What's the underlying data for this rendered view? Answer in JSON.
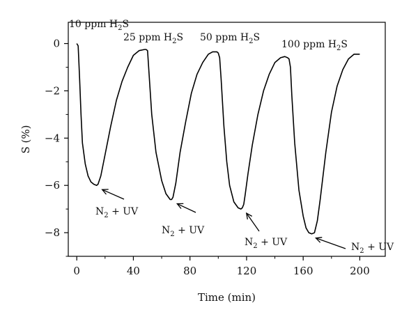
{
  "chart_data": {
    "type": "line",
    "title": "",
    "xlabel": "Time (min)",
    "ylabel": "S (%)",
    "xlim": [
      -6,
      218
    ],
    "ylim": [
      -9,
      0.9
    ],
    "x_ticks": [
      0,
      40,
      80,
      120,
      160,
      200
    ],
    "x_tick_labels": [
      "0",
      "40",
      "80",
      "120",
      "160",
      "200"
    ],
    "y_ticks": [
      0,
      -2,
      -4,
      -6,
      -8
    ],
    "y_tick_labels": [
      "0",
      "−2",
      "−4",
      "−6",
      "−8"
    ],
    "grid": false,
    "color": "#000000",
    "series": [
      {
        "x": [
          0,
          1,
          2,
          3,
          4,
          6,
          8,
          10,
          12,
          14,
          15,
          17,
          20,
          24,
          28,
          32,
          36,
          40,
          44,
          48,
          49,
          50,
          51,
          53,
          56,
          60,
          63,
          66,
          67,
          68,
          70,
          73,
          77,
          81,
          85,
          89,
          93,
          96,
          99,
          100,
          101,
          102,
          104,
          106,
          108,
          111,
          114,
          116,
          117,
          118,
          119,
          121,
          124,
          128,
          132,
          136,
          140,
          144,
          147,
          149,
          150,
          151,
          152,
          154,
          157,
          160,
          162,
          164,
          166,
          168,
          170,
          172,
          176,
          180,
          184,
          188,
          192,
          196,
          200
        ],
        "y": [
          0,
          -0.1,
          -1.5,
          -3.0,
          -4.2,
          -5.1,
          -5.6,
          -5.85,
          -5.95,
          -6.0,
          -5.95,
          -5.6,
          -4.7,
          -3.5,
          -2.4,
          -1.6,
          -1.0,
          -0.5,
          -0.3,
          -0.25,
          -0.25,
          -0.3,
          -1.2,
          -3.0,
          -4.6,
          -5.8,
          -6.35,
          -6.6,
          -6.6,
          -6.5,
          -5.9,
          -4.6,
          -3.3,
          -2.1,
          -1.3,
          -0.8,
          -0.45,
          -0.35,
          -0.35,
          -0.4,
          -0.6,
          -1.5,
          -3.5,
          -5.0,
          -6.0,
          -6.7,
          -6.95,
          -7.0,
          -6.95,
          -6.8,
          -6.4,
          -5.5,
          -4.3,
          -3.0,
          -2.0,
          -1.3,
          -0.8,
          -0.6,
          -0.55,
          -0.6,
          -0.65,
          -1.0,
          -2.2,
          -4.2,
          -6.2,
          -7.3,
          -7.8,
          -8.0,
          -8.05,
          -8.0,
          -7.5,
          -6.6,
          -4.6,
          -2.9,
          -1.8,
          -1.1,
          -0.65,
          -0.45,
          -0.45
        ]
      }
    ],
    "annotations": [
      {
        "id": "conc-10",
        "text": "10 ppm H",
        "sub": "2",
        "tail": "S"
      },
      {
        "id": "conc-25",
        "text": "25 ppm H",
        "sub": "2",
        "tail": "S"
      },
      {
        "id": "conc-50",
        "text": "50 ppm H",
        "sub": "2",
        "tail": "S"
      },
      {
        "id": "conc-100",
        "text": "100 ppm H",
        "sub": "2",
        "tail": "S"
      }
    ],
    "arrow_labels": [
      {
        "id": "uv-1",
        "text": "N",
        "sub": "2",
        "tail": " + UV",
        "x": 15,
        "y": -6.0
      },
      {
        "id": "uv-2",
        "text": "N",
        "sub": "2",
        "tail": " + UV",
        "x": 68,
        "y": -6.6
      },
      {
        "id": "uv-3",
        "text": "N",
        "sub": "2",
        "tail": " + UV",
        "x": 117,
        "y": -7.0
      },
      {
        "id": "uv-4",
        "text": "N",
        "sub": "2",
        "tail": " + UV",
        "x": 166,
        "y": -8.05
      }
    ]
  }
}
